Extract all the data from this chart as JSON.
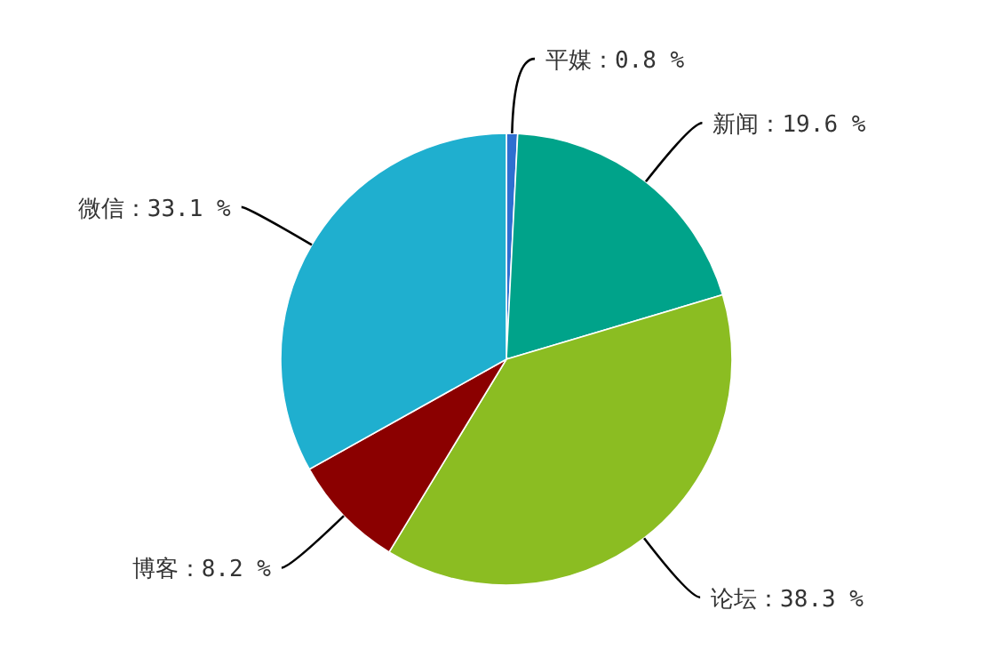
{
  "chart_data": {
    "type": "pie",
    "categories": [
      "平媒",
      "新闻",
      "论坛",
      "博客",
      "微信"
    ],
    "values": [
      0.8,
      19.6,
      38.3,
      8.2,
      33.1
    ],
    "value_labels": [
      "0.8 %",
      "19.6 %",
      "38.3 %",
      "8.2 %",
      "33.1 %"
    ],
    "colors": [
      "#2e6fd0",
      "#00a38a",
      "#8bbd22",
      "#8b0000",
      "#1fafcf"
    ]
  }
}
